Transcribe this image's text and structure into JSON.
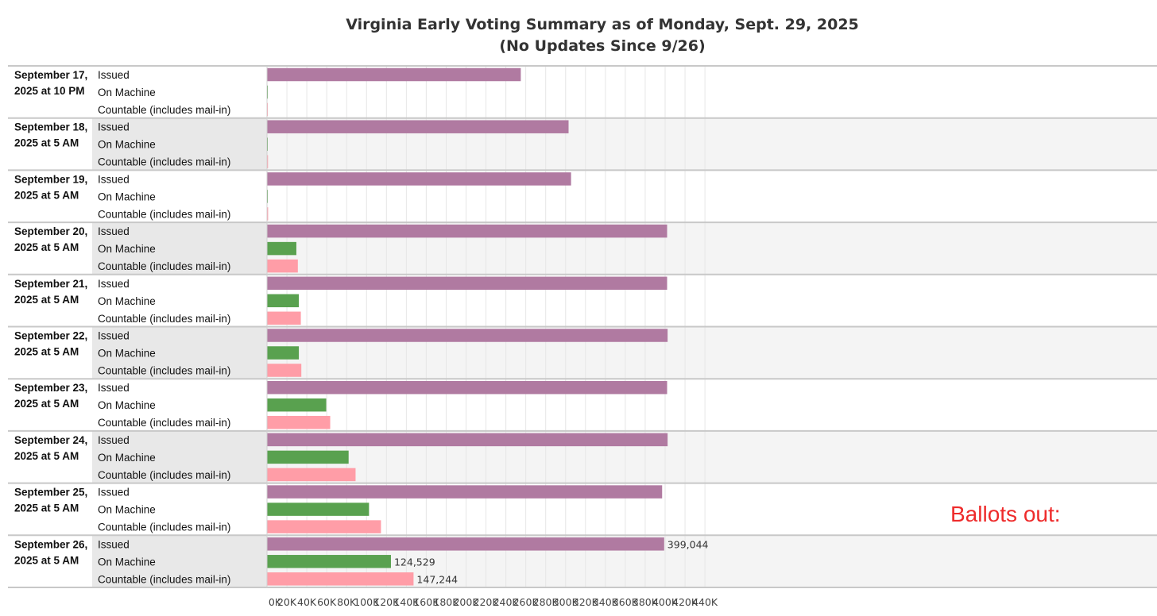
{
  "chart_data": {
    "type": "bar",
    "orientation": "horizontal",
    "title": "Virginia Early Voting Summary as of Monday, Sept. 29, 2025",
    "subtitle": "(No Updates Since 9/26)",
    "annotation": "Ballots out:",
    "grid": true,
    "xlim": [
      0,
      440000
    ],
    "x_ticks": [
      0,
      20000,
      40000,
      60000,
      80000,
      100000,
      120000,
      140000,
      160000,
      180000,
      200000,
      220000,
      240000,
      260000,
      280000,
      300000,
      320000,
      340000,
      360000,
      380000,
      400000,
      420000,
      440000
    ],
    "x_tick_labels": [
      "0K",
      "20K",
      "40K",
      "60K",
      "80K",
      "100K",
      "120K",
      "140K",
      "160K",
      "180K",
      "200K",
      "220K",
      "240K",
      "260K",
      "280K",
      "300K",
      "320K",
      "340K",
      "360K",
      "380K",
      "400K",
      "420K",
      "440K"
    ],
    "groups": [
      {
        "label_lines": [
          "September 17,",
          "2025 at 10 PM"
        ],
        "values": [
          255000,
          300,
          300
        ]
      },
      {
        "label_lines": [
          "September 18,",
          "2025 at 5 AM"
        ],
        "values": [
          303000,
          400,
          1000
        ]
      },
      {
        "label_lines": [
          "September 19,",
          "2025 at 5 AM"
        ],
        "values": [
          305500,
          450,
          1100
        ]
      },
      {
        "label_lines": [
          "September 20,",
          "2025 at 5 AM"
        ],
        "values": [
          402000,
          29500,
          31000
        ]
      },
      {
        "label_lines": [
          "September 21,",
          "2025 at 5 AM"
        ],
        "values": [
          402000,
          32000,
          34000
        ]
      },
      {
        "label_lines": [
          "September 22,",
          "2025 at 5 AM"
        ],
        "values": [
          402500,
          32000,
          34500
        ]
      },
      {
        "label_lines": [
          "September 23,",
          "2025 at 5 AM"
        ],
        "values": [
          402000,
          59500,
          63500
        ]
      },
      {
        "label_lines": [
          "September 24,",
          "2025 at 5 AM"
        ],
        "values": [
          402500,
          82000,
          89000
        ]
      },
      {
        "label_lines": [
          "September 25,",
          "2025 at 5 AM"
        ],
        "values": [
          397000,
          102500,
          114500
        ]
      },
      {
        "label_lines": [
          "September 26,",
          "2025 at 5 AM"
        ],
        "values": [
          399044,
          124529,
          147244
        ],
        "data_labels": [
          "399,044",
          "124,529",
          "147,244"
        ]
      }
    ],
    "series": [
      {
        "name": "Issued",
        "color": "#b07aa1"
      },
      {
        "name": "On Machine",
        "color": "#59a14f"
      },
      {
        "name": "Countable (includes mail-in)",
        "color": "#ff9da7"
      }
    ]
  }
}
